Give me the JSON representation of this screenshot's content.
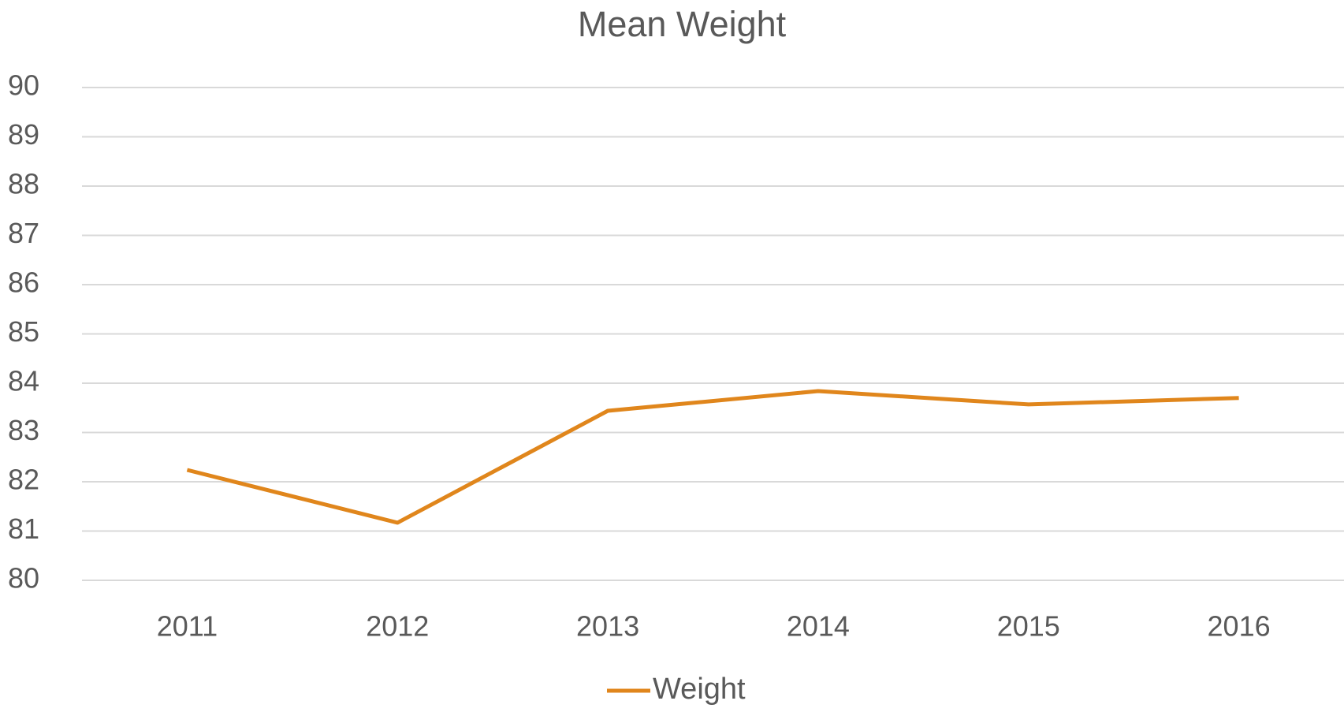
{
  "chart_data": {
    "type": "line",
    "title": "Mean Weight",
    "categories": [
      "2011",
      "2012",
      "2013",
      "2014",
      "2015",
      "2016"
    ],
    "series": [
      {
        "name": "Weight",
        "color": "#e0861c",
        "values": [
          82.24,
          81.17,
          83.44,
          83.84,
          83.57,
          83.7
        ]
      }
    ],
    "ylim": [
      80,
      90
    ],
    "yticks": [
      80,
      81,
      82,
      83,
      84,
      85,
      86,
      87,
      88,
      89,
      90
    ],
    "grid": true,
    "legend": "bottom"
  }
}
